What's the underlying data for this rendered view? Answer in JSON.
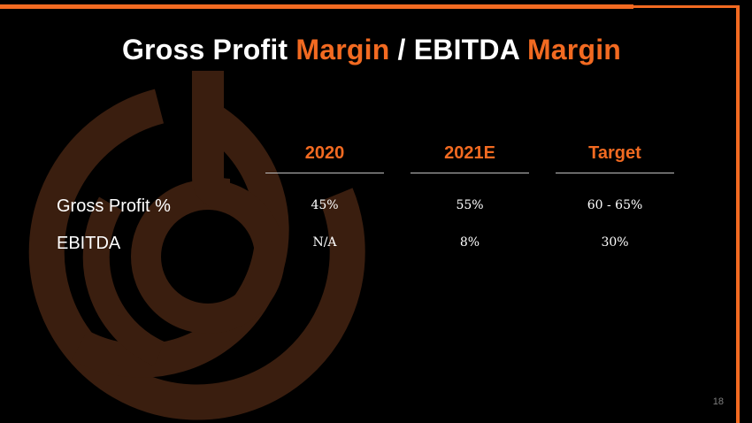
{
  "slide": {
    "title_part1": "Gross Profit ",
    "title_accent1": "Margin",
    "title_part2": " / EBITDA ",
    "title_accent2": "Margin",
    "page_number": "18",
    "colors": {
      "accent": "#f26a21",
      "background": "#000000",
      "watermark": "#3a1e0f",
      "rule": "#bfbfbf"
    }
  },
  "table": {
    "columns": [
      "2020",
      "2021E",
      "Target"
    ],
    "rows": [
      {
        "label": "Gross Profit %",
        "values": [
          "45%",
          "55%",
          "60 - 65%"
        ]
      },
      {
        "label": "EBITDA",
        "values": [
          "N/A",
          "8%",
          "30%"
        ]
      }
    ]
  }
}
